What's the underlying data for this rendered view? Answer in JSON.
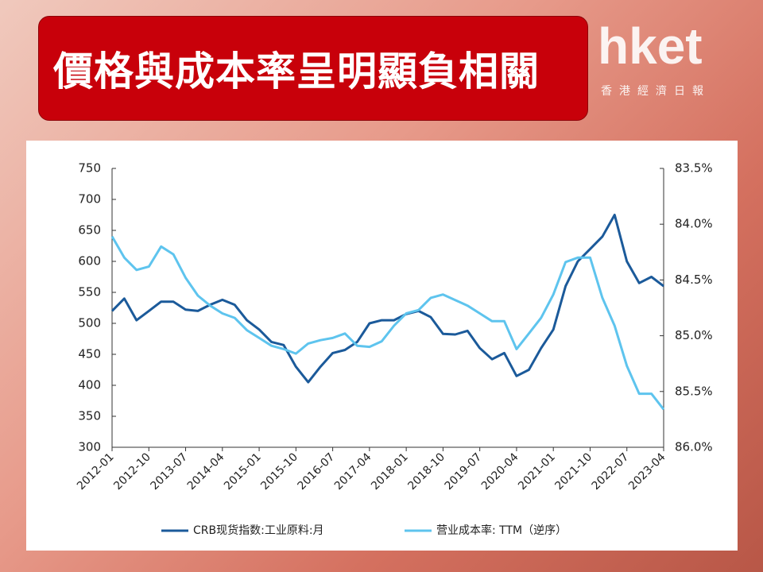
{
  "header": {
    "title": "價格與成本率呈明顯負相關",
    "logo": "hket",
    "logo_sub": "香港經濟日報"
  },
  "chart_data": {
    "type": "line",
    "x": [
      "2012-01",
      "2012-04",
      "2012-07",
      "2012-10",
      "2013-01",
      "2013-04",
      "2013-07",
      "2013-10",
      "2014-01",
      "2014-04",
      "2014-07",
      "2014-10",
      "2015-01",
      "2015-04",
      "2015-07",
      "2015-10",
      "2016-01",
      "2016-04",
      "2016-07",
      "2016-10",
      "2017-01",
      "2017-04",
      "2017-07",
      "2017-10",
      "2018-01",
      "2018-04",
      "2018-07",
      "2018-10",
      "2019-01",
      "2019-04",
      "2019-07",
      "2019-10",
      "2020-01",
      "2020-04",
      "2020-07",
      "2020-10",
      "2021-01",
      "2021-04",
      "2021-07",
      "2021-10",
      "2022-01",
      "2022-04",
      "2022-07",
      "2022-10",
      "2023-01",
      "2023-04"
    ],
    "xticks": [
      "2012-01",
      "2012-10",
      "2013-07",
      "2014-04",
      "2015-01",
      "2015-10",
      "2016-07",
      "2017-04",
      "2018-01",
      "2018-10",
      "2019-07",
      "2020-04",
      "2021-01",
      "2021-10",
      "2022-07",
      "2023-04"
    ],
    "series": [
      {
        "name": "CRB现货指数:工业原料:月",
        "color": "#1b5a9a",
        "axis": "y",
        "values": [
          520,
          540,
          505,
          520,
          535,
          535,
          522,
          520,
          530,
          538,
          530,
          505,
          490,
          470,
          465,
          430,
          405,
          430,
          452,
          457,
          470,
          500,
          505,
          505,
          515,
          520,
          510,
          483,
          482,
          488,
          460,
          442,
          452,
          415,
          425,
          460,
          490,
          560,
          600,
          620,
          640,
          675,
          600,
          565,
          575,
          560
        ]
      },
      {
        "name": "营业成本率: TTM（逆序）",
        "color": "#5ec4ee",
        "axis": "y2",
        "values": [
          84.11,
          84.3,
          84.41,
          84.38,
          84.2,
          84.27,
          84.48,
          84.64,
          84.73,
          84.8,
          84.84,
          84.95,
          85.02,
          85.09,
          85.12,
          85.16,
          85.07,
          85.04,
          85.02,
          84.98,
          85.09,
          85.1,
          85.05,
          84.91,
          84.8,
          84.77,
          84.66,
          84.63,
          84.68,
          84.73,
          84.8,
          84.87,
          84.87,
          85.12,
          84.98,
          84.84,
          84.63,
          84.34,
          84.3,
          84.3,
          84.66,
          84.91,
          85.27,
          85.52,
          85.52,
          85.66
        ]
      }
    ],
    "ylim": [
      300,
      750
    ],
    "yticks": [
      300,
      350,
      400,
      450,
      500,
      550,
      600,
      650,
      700,
      750
    ],
    "y2lim": [
      86.0,
      83.5
    ],
    "y2ticks": [
      {
        "value": 86.0,
        "label": "86.0%"
      },
      {
        "value": 85.5,
        "label": "85.5%"
      },
      {
        "value": 85.0,
        "label": "85.0%"
      },
      {
        "value": 84.5,
        "label": "84.5%"
      },
      {
        "value": 84.0,
        "label": "84.0%"
      },
      {
        "value": 83.5,
        "label": "83.5%"
      }
    ]
  }
}
